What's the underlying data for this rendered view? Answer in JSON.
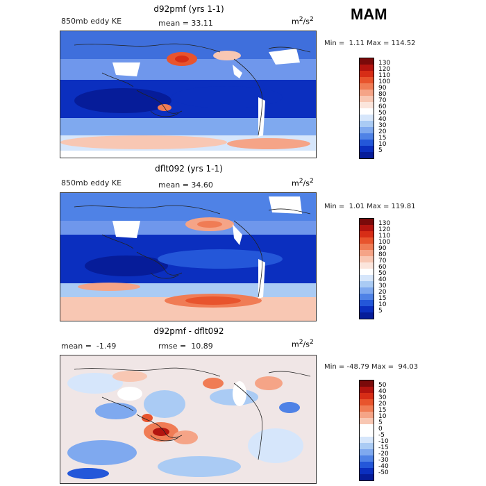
{
  "season": "MAM",
  "panels": [
    {
      "title": "d92pmf (yrs 1-1)",
      "left_label": "850mb eddy KE",
      "stat1_name": "mean =",
      "stat1_value": "33.11",
      "stat2_name": "",
      "stat2_value": "",
      "units_base": "m",
      "units_sup1": "2",
      "units_mid": "/s",
      "units_sup2": "2",
      "min_label": "Min =",
      "min_value": "1.11",
      "max_label": "Max =",
      "max_value": "114.52",
      "colorbar_levels": [
        "130",
        "120",
        "110",
        "100",
        "90",
        "80",
        "70",
        "60",
        "50",
        "40",
        "30",
        "20",
        "15",
        "10",
        "5"
      ],
      "colorbar_colors": [
        "#7a0a0a",
        "#b3140f",
        "#d72d16",
        "#e8542d",
        "#f07c55",
        "#f5a487",
        "#f8c7b3",
        "#fbe5dc",
        "#ffffff",
        "#d6e6fb",
        "#aacbf4",
        "#7fa9ef",
        "#4f82e6",
        "#2457d9",
        "#0b2fbf",
        "#061c99"
      ]
    },
    {
      "title": "dflt092 (yrs 1-1)",
      "left_label": "850mb eddy KE",
      "stat1_name": "mean =",
      "stat1_value": "34.60",
      "stat2_name": "",
      "stat2_value": "",
      "units_base": "m",
      "units_sup1": "2",
      "units_mid": "/s",
      "units_sup2": "2",
      "min_label": "Min =",
      "min_value": "1.01",
      "max_label": "Max =",
      "max_value": "119.81",
      "colorbar_levels": [
        "130",
        "120",
        "110",
        "100",
        "90",
        "80",
        "70",
        "60",
        "50",
        "40",
        "30",
        "20",
        "15",
        "10",
        "5"
      ],
      "colorbar_colors": [
        "#7a0a0a",
        "#b3140f",
        "#d72d16",
        "#e8542d",
        "#f07c55",
        "#f5a487",
        "#f8c7b3",
        "#fbe5dc",
        "#ffffff",
        "#d6e6fb",
        "#aacbf4",
        "#7fa9ef",
        "#4f82e6",
        "#2457d9",
        "#0b2fbf",
        "#061c99"
      ]
    },
    {
      "title": "d92pmf - dflt092",
      "left_label": "",
      "stat1_name": "mean =",
      "stat1_value": "-1.49",
      "stat2_name": "rmse =",
      "stat2_value": "10.89",
      "units_base": "m",
      "units_sup1": "2",
      "units_mid": "/s",
      "units_sup2": "2",
      "min_label": "Min =",
      "min_value": "-48.79",
      "max_label": "Max =",
      "max_value": "94.03",
      "colorbar_levels": [
        "50",
        "40",
        "30",
        "20",
        "15",
        "10",
        "5",
        "0",
        "-5",
        "-10",
        "-15",
        "-20",
        "-30",
        "-40",
        "-50"
      ],
      "colorbar_colors": [
        "#7a0a0a",
        "#b3140f",
        "#d72d16",
        "#e8542d",
        "#f07c55",
        "#f5a487",
        "#f8c7b3",
        "#ffffff",
        "#ffffff",
        "#d6e6fb",
        "#aacbf4",
        "#7fa9ef",
        "#4f82e6",
        "#2457d9",
        "#0b2fbf",
        "#061c99"
      ]
    }
  ]
}
